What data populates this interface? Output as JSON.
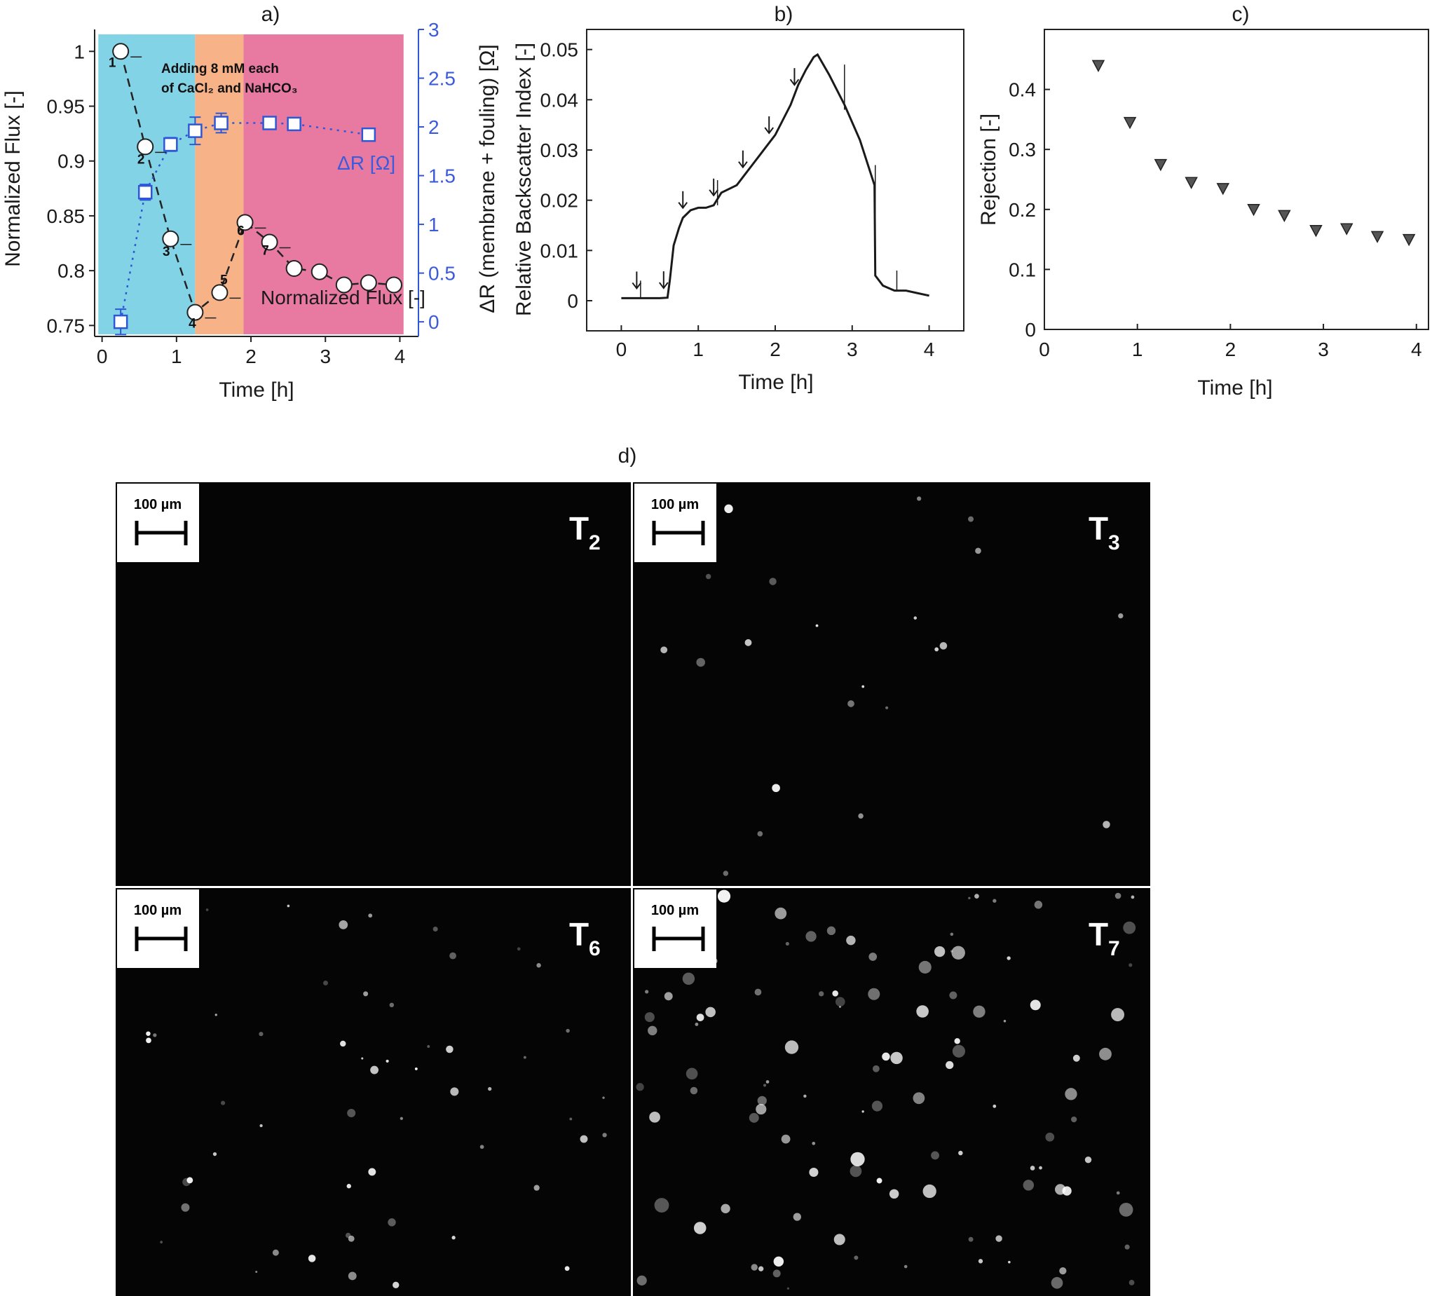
{
  "chart_data": [
    {
      "panel": "a)",
      "type": "line",
      "xlabel": "Time [h]",
      "ylabel": "Normalized Flux [-]",
      "ylabel_right": "ΔR (membrane + fouling) [Ω]",
      "xlim": [
        -0.1,
        4.25
      ],
      "ylim": [
        0.74,
        1.02
      ],
      "ylim_right": [
        -0.15,
        3
      ],
      "xticks": [
        "0",
        "1",
        "2",
        "3",
        "4"
      ],
      "yticks": [
        "0.75",
        "0.8",
        "0.85",
        "0.9",
        "0.95",
        "1"
      ],
      "yticks_right": [
        "0",
        "0.5",
        "1",
        "1.5",
        "2",
        "2.5",
        "3"
      ],
      "regions": [
        {
          "x0": -0.05,
          "x1": 1.25,
          "color": "#82d3e6"
        },
        {
          "x0": 1.25,
          "x1": 1.9,
          "color": "#f7b287"
        },
        {
          "x0": 1.9,
          "x1": 4.05,
          "color": "#e87aa2"
        }
      ],
      "annotation_line1": "Adding 8 mM each",
      "annotation_line2": "of CaCl₂ and NaHCO₃",
      "series": [
        {
          "name": "Normalized Flux [-]",
          "axis": "left",
          "marker": "circle",
          "color": "#222222",
          "x": [
            0.25,
            0.58,
            0.92,
            1.25,
            1.58,
            1.92,
            2.25,
            2.58,
            2.92,
            3.25,
            3.58,
            3.92
          ],
          "y": [
            1.0,
            0.913,
            0.829,
            0.762,
            0.78,
            0.844,
            0.826,
            0.802,
            0.799,
            0.787,
            0.789,
            0.787
          ]
        },
        {
          "name": "ΔR [Ω]",
          "axis": "right",
          "marker": "square",
          "color": "#2e57d6",
          "x": [
            0.25,
            0.58,
            0.92,
            1.25,
            1.6,
            2.25,
            2.58,
            3.58
          ],
          "y": [
            0.0,
            1.33,
            1.82,
            1.96,
            2.04,
            2.04,
            2.03,
            1.92
          ],
          "err": [
            0.13,
            0.08,
            0.07,
            0.14,
            0.1,
            0.05,
            0.05,
            0.05
          ]
        }
      ],
      "point_labels": [
        "1",
        "2",
        "3",
        "4",
        "5",
        "6",
        "7"
      ]
    },
    {
      "panel": "b)",
      "type": "line",
      "xlabel": "Time [h]",
      "ylabel": "Relative Backscatter Index [-]",
      "xlim": [
        -0.45,
        4.45
      ],
      "ylim": [
        -0.006,
        0.054
      ],
      "xticks": [
        "0",
        "1",
        "2",
        "3",
        "4"
      ],
      "yticks": [
        "0",
        "0.01",
        "0.02",
        "0.03",
        "0.04",
        "0.05"
      ],
      "series": [
        {
          "name": "",
          "color": "#1a1a1a",
          "x": [
            0.0,
            0.3,
            0.5,
            0.6,
            0.63,
            0.68,
            0.75,
            0.8,
            0.9,
            1.0,
            1.1,
            1.2,
            1.3,
            1.5,
            1.6,
            1.7,
            1.8,
            1.9,
            2.0,
            2.1,
            2.2,
            2.3,
            2.4,
            2.5,
            2.55,
            2.7,
            2.9,
            3.1,
            3.29,
            3.3,
            3.4,
            3.55,
            3.7,
            3.85,
            4.0
          ],
          "y": [
            0.0005,
            0.0005,
            0.0005,
            0.0006,
            0.004,
            0.011,
            0.0145,
            0.0165,
            0.018,
            0.0185,
            0.0185,
            0.019,
            0.0215,
            0.023,
            0.025,
            0.027,
            0.029,
            0.031,
            0.033,
            0.036,
            0.039,
            0.043,
            0.046,
            0.0485,
            0.049,
            0.045,
            0.039,
            0.032,
            0.023,
            0.005,
            0.003,
            0.002,
            0.002,
            0.0015,
            0.001
          ]
        }
      ],
      "arrows_x": [
        0.2,
        0.55,
        0.8,
        1.2,
        1.58,
        1.92,
        2.25
      ]
    },
    {
      "panel": "c)",
      "type": "scatter",
      "xlabel": "Time [h]",
      "ylabel": "Rejection [-]",
      "xlim": [
        0,
        4.13
      ],
      "ylim": [
        0,
        0.5
      ],
      "xticks": [
        "0",
        "1",
        "2",
        "3",
        "4"
      ],
      "yticks": [
        "0",
        "0.1",
        "0.2",
        "0.3",
        "0.4"
      ],
      "series": [
        {
          "name": "",
          "marker": "triangle-down",
          "color": "#333333",
          "x": [
            0.58,
            0.92,
            1.25,
            1.58,
            1.92,
            2.25,
            2.58,
            2.92,
            3.25,
            3.58,
            3.92
          ],
          "y": [
            0.44,
            0.345,
            0.275,
            0.245,
            0.235,
            0.2,
            0.19,
            0.165,
            0.168,
            0.155,
            0.15
          ]
        }
      ]
    }
  ],
  "panel_d": {
    "title": "d)",
    "scale_bar_label": "100 µm",
    "images": [
      {
        "label": "T",
        "sub": "2",
        "density": 0
      },
      {
        "label": "T",
        "sub": "3",
        "density": 22
      },
      {
        "label": "T",
        "sub": "6",
        "density": 55
      },
      {
        "label": "T",
        "sub": "7",
        "density": 110
      }
    ]
  }
}
